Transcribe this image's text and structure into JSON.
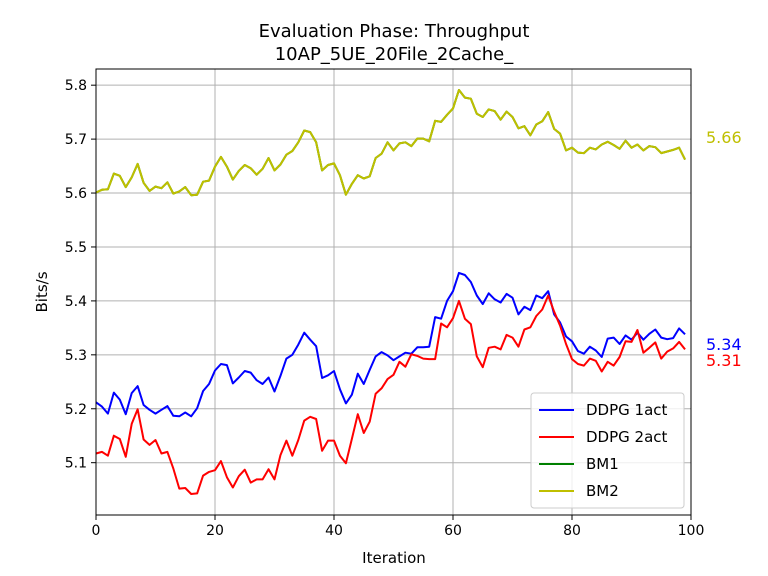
{
  "chart_data": {
    "type": "line",
    "title_line1": "Evaluation Phase: Throughput",
    "title_line2": "10AP_5UE_20File_2Cache_",
    "xlabel": "Iteration",
    "ylabel": "Bits/s",
    "xlim": [
      0,
      100
    ],
    "ylim": [
      5.003,
      5.83
    ],
    "grid": true,
    "legend_position": "lower-right",
    "x_ticks": [
      0,
      20,
      40,
      60,
      80,
      100
    ],
    "y_ticks": [
      5.1,
      5.2,
      5.3,
      5.4,
      5.5,
      5.6,
      5.7,
      5.8
    ],
    "x_tick_labels": [
      "0",
      "20",
      "40",
      "60",
      "80",
      "100"
    ],
    "y_tick_labels": [
      "5.1",
      "5.2",
      "5.3",
      "5.4",
      "5.5",
      "5.6",
      "5.7",
      "5.8"
    ],
    "series": [
      {
        "name": "DDPG 1act",
        "color": "#0000ff",
        "end_label": "5.34",
        "values": [
          5.212,
          5.204,
          5.191,
          5.23,
          5.217,
          5.19,
          5.229,
          5.242,
          5.207,
          5.198,
          5.191,
          5.198,
          5.205,
          5.187,
          5.186,
          5.193,
          5.186,
          5.201,
          5.233,
          5.246,
          5.271,
          5.283,
          5.281,
          5.247,
          5.258,
          5.27,
          5.267,
          5.253,
          5.246,
          5.258,
          5.232,
          5.261,
          5.293,
          5.3,
          5.319,
          5.341,
          5.328,
          5.316,
          5.257,
          5.262,
          5.27,
          5.236,
          5.21,
          5.226,
          5.265,
          5.246,
          5.272,
          5.297,
          5.305,
          5.299,
          5.29,
          5.297,
          5.304,
          5.302,
          5.314,
          5.314,
          5.315,
          5.37,
          5.367,
          5.4,
          5.418,
          5.452,
          5.448,
          5.435,
          5.41,
          5.394,
          5.414,
          5.403,
          5.397,
          5.413,
          5.406,
          5.375,
          5.389,
          5.383,
          5.41,
          5.405,
          5.418,
          5.375,
          5.36,
          5.334,
          5.325,
          5.307,
          5.302,
          5.315,
          5.308,
          5.296,
          5.33,
          5.332,
          5.32,
          5.336,
          5.328,
          5.341,
          5.328,
          5.339,
          5.347,
          5.332,
          5.329,
          5.331,
          5.349,
          5.338
        ]
      },
      {
        "name": "DDPG 2act",
        "color": "#ff0000",
        "end_label": "5.31",
        "values": [
          5.117,
          5.12,
          5.113,
          5.15,
          5.144,
          5.111,
          5.172,
          5.199,
          5.143,
          5.133,
          5.142,
          5.117,
          5.12,
          5.089,
          5.052,
          5.053,
          5.042,
          5.043,
          5.076,
          5.083,
          5.086,
          5.103,
          5.073,
          5.054,
          5.075,
          5.087,
          5.063,
          5.069,
          5.069,
          5.088,
          5.069,
          5.114,
          5.141,
          5.113,
          5.142,
          5.178,
          5.185,
          5.181,
          5.122,
          5.141,
          5.141,
          5.113,
          5.099,
          5.144,
          5.19,
          5.155,
          5.176,
          5.228,
          5.238,
          5.255,
          5.263,
          5.287,
          5.278,
          5.301,
          5.298,
          5.293,
          5.292,
          5.292,
          5.358,
          5.351,
          5.368,
          5.4,
          5.367,
          5.357,
          5.297,
          5.277,
          5.313,
          5.315,
          5.31,
          5.337,
          5.332,
          5.315,
          5.347,
          5.351,
          5.372,
          5.384,
          5.41,
          5.38,
          5.354,
          5.32,
          5.292,
          5.283,
          5.28,
          5.293,
          5.289,
          5.269,
          5.287,
          5.28,
          5.296,
          5.325,
          5.324,
          5.346,
          5.304,
          5.313,
          5.323,
          5.293,
          5.306,
          5.312,
          5.324,
          5.31
        ]
      },
      {
        "name": "BM1",
        "color": "#008000",
        "end_label": "",
        "values": [
          5.601,
          5.606,
          5.607,
          5.636,
          5.632,
          5.611,
          5.629,
          5.654,
          5.619,
          5.604,
          5.612,
          5.609,
          5.62,
          5.599,
          5.603,
          5.611,
          5.596,
          5.597,
          5.621,
          5.623,
          5.649,
          5.667,
          5.649,
          5.625,
          5.641,
          5.652,
          5.646,
          5.634,
          5.645,
          5.665,
          5.642,
          5.653,
          5.671,
          5.678,
          5.694,
          5.716,
          5.713,
          5.694,
          5.642,
          5.652,
          5.655,
          5.633,
          5.597,
          5.617,
          5.633,
          5.627,
          5.631,
          5.665,
          5.673,
          5.694,
          5.679,
          5.692,
          5.694,
          5.687,
          5.701,
          5.701,
          5.696,
          5.734,
          5.732,
          5.745,
          5.757,
          5.791,
          5.777,
          5.775,
          5.747,
          5.741,
          5.755,
          5.752,
          5.736,
          5.751,
          5.741,
          5.72,
          5.724,
          5.707,
          5.727,
          5.733,
          5.75,
          5.719,
          5.71,
          5.679,
          5.684,
          5.675,
          5.674,
          5.684,
          5.681,
          5.69,
          5.695,
          5.689,
          5.682,
          5.697,
          5.684,
          5.69,
          5.679,
          5.687,
          5.685,
          5.674,
          5.677,
          5.68,
          5.684,
          5.662
        ]
      },
      {
        "name": "BM2",
        "color": "#bfbf00",
        "end_label": "5.66",
        "values": [
          5.601,
          5.606,
          5.607,
          5.636,
          5.632,
          5.611,
          5.629,
          5.654,
          5.619,
          5.604,
          5.612,
          5.609,
          5.62,
          5.599,
          5.603,
          5.611,
          5.596,
          5.597,
          5.621,
          5.623,
          5.649,
          5.667,
          5.649,
          5.625,
          5.641,
          5.652,
          5.646,
          5.634,
          5.645,
          5.665,
          5.642,
          5.653,
          5.671,
          5.678,
          5.694,
          5.716,
          5.713,
          5.694,
          5.642,
          5.652,
          5.655,
          5.633,
          5.597,
          5.617,
          5.633,
          5.627,
          5.631,
          5.665,
          5.673,
          5.694,
          5.679,
          5.692,
          5.694,
          5.687,
          5.701,
          5.701,
          5.696,
          5.734,
          5.732,
          5.745,
          5.757,
          5.791,
          5.777,
          5.775,
          5.747,
          5.741,
          5.755,
          5.752,
          5.736,
          5.751,
          5.741,
          5.72,
          5.724,
          5.707,
          5.727,
          5.733,
          5.75,
          5.719,
          5.71,
          5.679,
          5.684,
          5.675,
          5.674,
          5.684,
          5.681,
          5.69,
          5.695,
          5.689,
          5.682,
          5.697,
          5.684,
          5.69,
          5.679,
          5.687,
          5.685,
          5.674,
          5.677,
          5.68,
          5.684,
          5.662
        ]
      }
    ]
  }
}
